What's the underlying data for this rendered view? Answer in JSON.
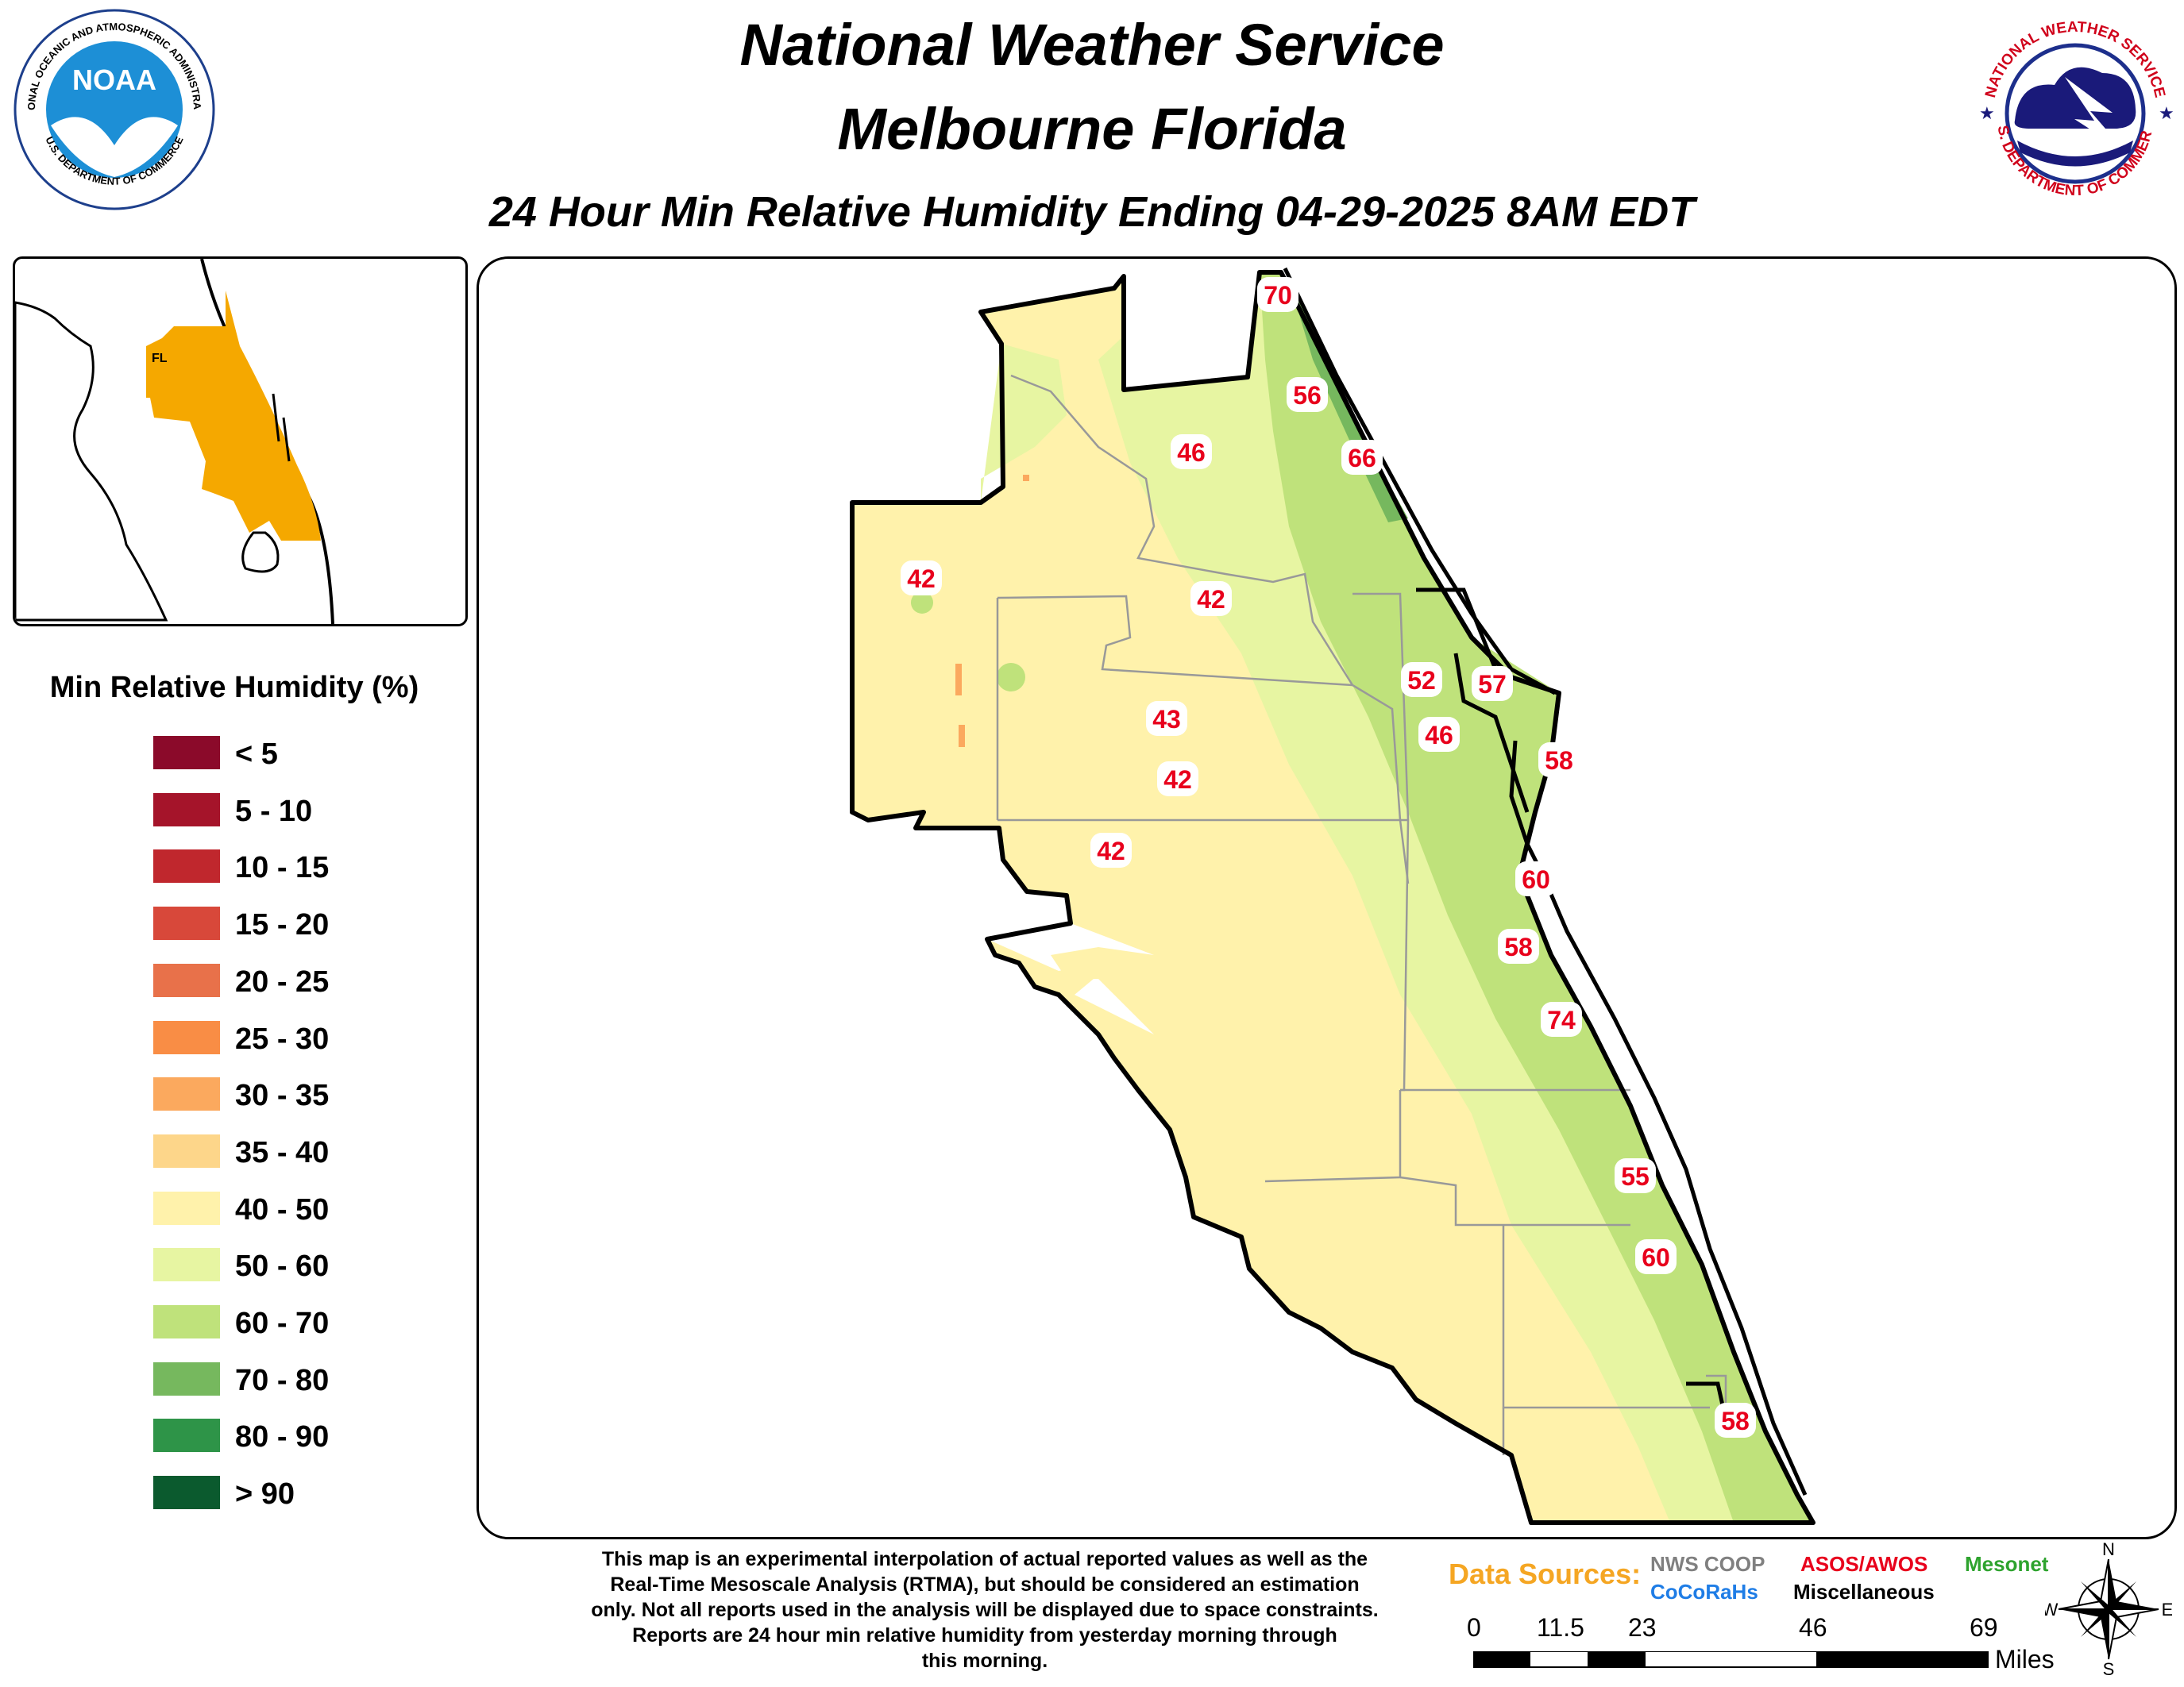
{
  "header": {
    "title_line1": "National Weather Service",
    "title_line2": "Melbourne Florida",
    "subtitle": "24 Hour Min Relative Humidity Ending 04-29-2025 8AM EDT"
  },
  "logos": {
    "noaa": {
      "center_text": "NOAA",
      "ring_top": "NATIONAL OCEANIC AND ATMOSPHERIC ADMINISTRATION",
      "ring_bottom": "U.S. DEPARTMENT OF COMMERCE",
      "color": "#1d8fd6"
    },
    "nws": {
      "ring_top": "NATIONAL WEATHER SERVICE",
      "ring_bottom": "U.S. DEPARTMENT OF COMMERCE",
      "color": "#d0021b"
    }
  },
  "inset": {
    "state_label": "FL",
    "highlight_color": "#f5a800"
  },
  "legend": {
    "title": "Min Relative Humidity (%)",
    "items": [
      {
        "label": "< 5",
        "color": "#8b0a2a"
      },
      {
        "label": "5 - 10",
        "color": "#a5142a"
      },
      {
        "label": "10 - 15",
        "color": "#c0272d"
      },
      {
        "label": "15 - 20",
        "color": "#d8483a"
      },
      {
        "label": "20 - 25",
        "color": "#e8714a"
      },
      {
        "label": "25 - 30",
        "color": "#f98d45"
      },
      {
        "label": "30 - 35",
        "color": "#fba95e"
      },
      {
        "label": "35 - 40",
        "color": "#fdd68a"
      },
      {
        "label": "40 - 50",
        "color": "#fff2ab"
      },
      {
        "label": "50 - 60",
        "color": "#e7f5a2"
      },
      {
        "label": "60 - 70",
        "color": "#bfe27b"
      },
      {
        "label": "70 - 80",
        "color": "#76b85e"
      },
      {
        "label": "80 - 90",
        "color": "#2e9448"
      },
      {
        "label": "> 90",
        "color": "#0b5a2e"
      }
    ]
  },
  "stations": [
    {
      "value": "70"
    },
    {
      "value": "56"
    },
    {
      "value": "66"
    },
    {
      "value": "46"
    },
    {
      "value": "42"
    },
    {
      "value": "42"
    },
    {
      "value": "52"
    },
    {
      "value": "57"
    },
    {
      "value": "46"
    },
    {
      "value": "58"
    },
    {
      "value": "43"
    },
    {
      "value": "42"
    },
    {
      "value": "42"
    },
    {
      "value": "60"
    },
    {
      "value": "58"
    },
    {
      "value": "74"
    },
    {
      "value": "55"
    },
    {
      "value": "60"
    },
    {
      "value": "58"
    }
  ],
  "footer": {
    "disclaimer_lines": [
      "This map is an experimental interpolation of actual reported values as well as the",
      "Real-Time Mesoscale Analysis (RTMA), but should be considered an estimation",
      "only. Not all reports used in the analysis will be displayed due to space constraints.",
      "Reports are 24 hour min relative humidity from yesterday morning through",
      "this morning."
    ],
    "data_sources_label": "Data Sources:",
    "sources": [
      {
        "label": "NWS COOP",
        "color": "#808080"
      },
      {
        "label": "ASOS/AWOS",
        "color": "#e8001c"
      },
      {
        "label": "Mesonet",
        "color": "#2ea32e"
      },
      {
        "label": "CoCoRaHs",
        "color": "#1f7de6"
      },
      {
        "label": "Miscellaneous",
        "color": "#000000"
      }
    ],
    "scale": {
      "ticks": [
        "0",
        "11.5",
        "23",
        "46",
        "69"
      ],
      "unit": "Miles"
    },
    "compass": {
      "n": "N",
      "s": "S",
      "e": "E",
      "w": "W"
    }
  }
}
